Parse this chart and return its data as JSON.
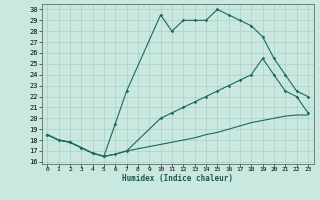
{
  "bg_color": "#c8e8e0",
  "grid_color": "#a8c8c0",
  "line_color": "#1a6b5a",
  "xlabel": "Humidex (Indice chaleur)",
  "xlim_min": -0.5,
  "xlim_max": 23.5,
  "ylim_min": 15.8,
  "ylim_max": 30.5,
  "yticks": [
    16,
    17,
    18,
    19,
    20,
    21,
    22,
    23,
    24,
    25,
    26,
    27,
    28,
    29,
    30
  ],
  "xticks": [
    0,
    1,
    2,
    3,
    4,
    5,
    6,
    7,
    8,
    9,
    10,
    11,
    12,
    13,
    14,
    15,
    16,
    17,
    18,
    19,
    20,
    21,
    22,
    23
  ],
  "line1_x": [
    0,
    1,
    2,
    3,
    4,
    5,
    6,
    7,
    8,
    9,
    10,
    11,
    12,
    13,
    14,
    15,
    16,
    17,
    18,
    19,
    20,
    21,
    22,
    23
  ],
  "line1_y": [
    18.5,
    18.0,
    17.8,
    17.3,
    16.8,
    16.5,
    16.7,
    17.0,
    17.2,
    17.4,
    17.6,
    17.8,
    18.0,
    18.2,
    18.5,
    18.7,
    19.0,
    19.3,
    19.6,
    19.8,
    20.0,
    20.2,
    20.3,
    20.3
  ],
  "line2_x": [
    0,
    1,
    2,
    3,
    4,
    5,
    6,
    7,
    10,
    11,
    12,
    13,
    14,
    15,
    16,
    17,
    18,
    19,
    20,
    21,
    22,
    23
  ],
  "line2_y": [
    18.5,
    18.0,
    17.8,
    17.3,
    16.8,
    16.5,
    16.7,
    17.0,
    20.0,
    20.5,
    21.0,
    21.5,
    22.0,
    22.5,
    23.0,
    23.5,
    24.0,
    25.5,
    24.0,
    22.5,
    22.0,
    20.5
  ],
  "line3_x": [
    0,
    1,
    2,
    3,
    4,
    5,
    6,
    7,
    10,
    11,
    12,
    13,
    14,
    15,
    16,
    17,
    18,
    19,
    20,
    21,
    22,
    23
  ],
  "line3_y": [
    18.5,
    18.0,
    17.8,
    17.3,
    16.8,
    16.5,
    19.5,
    22.5,
    29.5,
    28.0,
    29.0,
    29.0,
    29.0,
    30.0,
    29.5,
    29.0,
    28.5,
    27.5,
    25.5,
    24.0,
    22.5,
    22.0
  ]
}
